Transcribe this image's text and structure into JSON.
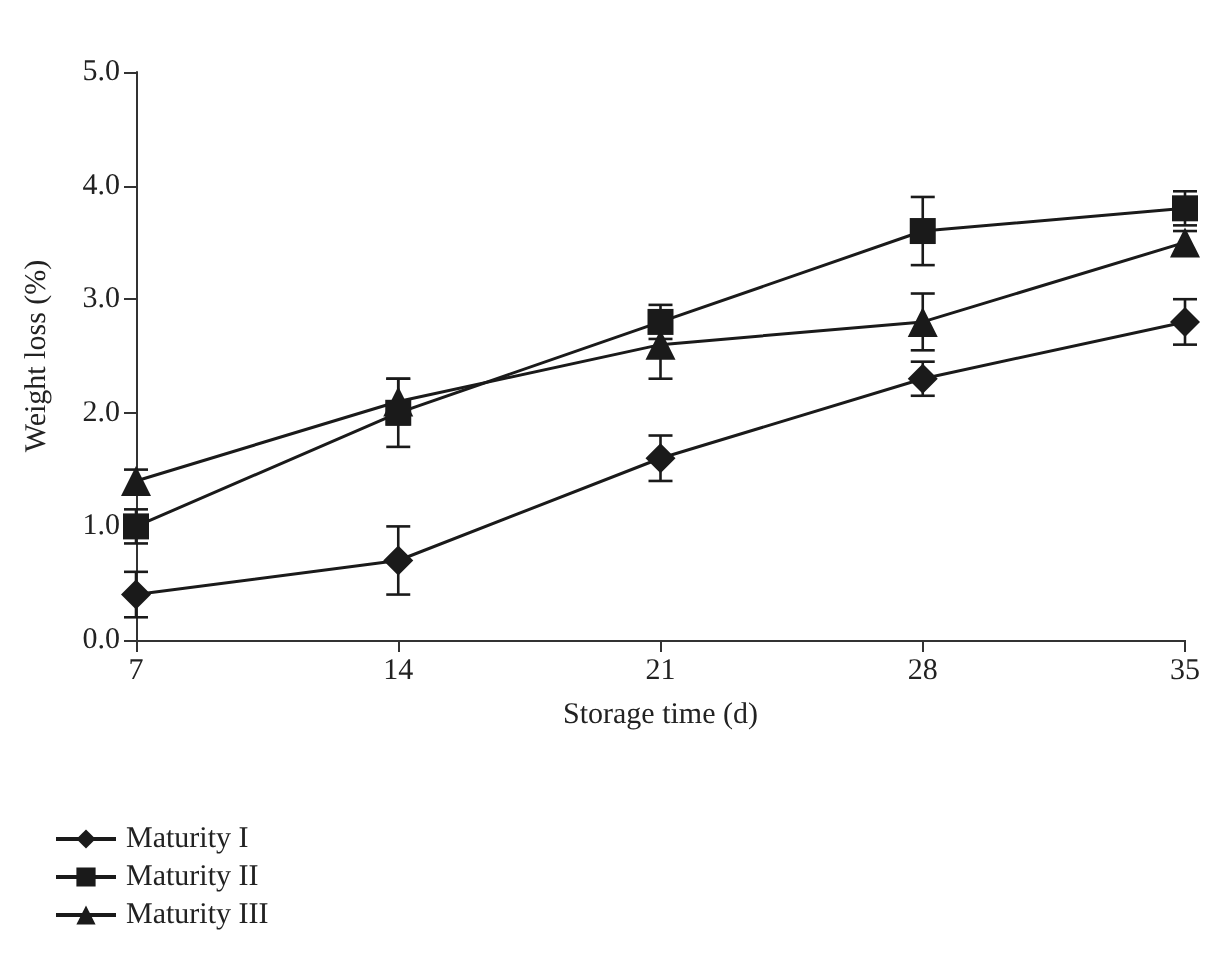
{
  "chart_data": {
    "type": "line",
    "xlabel": "Storage time (d)",
    "ylabel": "Weight loss (%)",
    "x": [
      7,
      14,
      21,
      28,
      35
    ],
    "xlim": [
      7,
      35
    ],
    "xticks": [
      7,
      14,
      21,
      28,
      35
    ],
    "ylim": [
      0,
      5
    ],
    "yticks": [
      {
        "value": 0,
        "label": "0.0"
      },
      {
        "value": 1,
        "label": "1.0"
      },
      {
        "value": 2,
        "label": "2.0"
      },
      {
        "value": 3,
        "label": "3.0"
      },
      {
        "value": 4,
        "label": "4.0"
      },
      {
        "value": 5,
        "label": "5.0"
      }
    ],
    "grid": false,
    "legend": "bottom",
    "line_style": "solid",
    "series": [
      {
        "name": "Maturity I",
        "color": "#1a1a1a",
        "marker": "diamond",
        "values": [
          0.4,
          0.7,
          1.6,
          2.3,
          2.8
        ],
        "errors": [
          0.2,
          0.3,
          0.2,
          0.15,
          0.2
        ]
      },
      {
        "name": "Maturity II",
        "color": "#1a1a1a",
        "marker": "square",
        "values": [
          1.0,
          2.0,
          2.8,
          3.6,
          3.8
        ],
        "errors": [
          0.15,
          0.3,
          0.15,
          0.3,
          0.15
        ]
      },
      {
        "name": "Maturity III",
        "color": "#1a1a1a",
        "marker": "triangle",
        "values": [
          1.4,
          2.1,
          2.6,
          2.8,
          3.5
        ],
        "errors": [
          0.1,
          0.2,
          0.3,
          0.25,
          0.1
        ]
      }
    ]
  }
}
